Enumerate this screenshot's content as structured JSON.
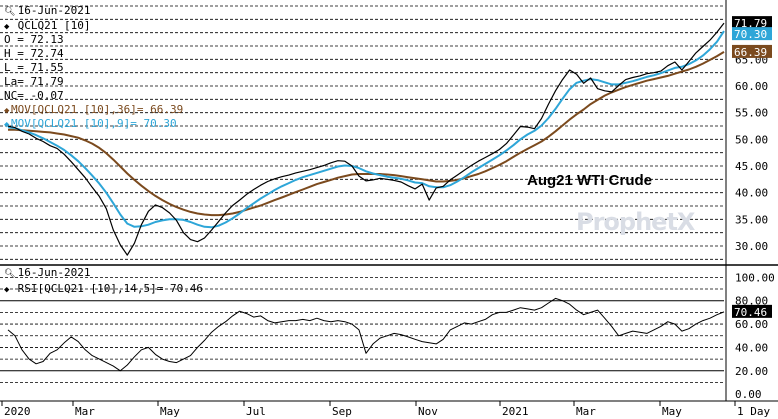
{
  "chart_data": [
    {
      "type": "line",
      "panel": "price",
      "date": "16-Jun-2021",
      "symbol": "QCLQ21 [10]",
      "ohlc": {
        "O": "72.13",
        "H": "72.74",
        "L": "71.55",
        "La": "71.79",
        "NC": "-0.07"
      },
      "ohlc_text": {
        "O": "O = 72.13",
        "H": "H = 72.74",
        "L": "L = 71.55",
        "La": "La= 71.79",
        "NC": "NC= -0.07"
      },
      "series": [
        {
          "name": "QCLQ21 [10]",
          "color": "#000000",
          "values": [
            52.5,
            52.2,
            51.5,
            51.0,
            50.2,
            49.6,
            48.8,
            48.3,
            47.2,
            45.8,
            44.3,
            42.8,
            41.0,
            39.3,
            37.0,
            33.0,
            30.2,
            28.3,
            30.5,
            34.0,
            36.5,
            37.7,
            37.2,
            36.2,
            34.8,
            32.5,
            31.2,
            30.8,
            31.5,
            33.0,
            34.6,
            36.2,
            37.6,
            38.6,
            39.7,
            40.6,
            41.4,
            42.1,
            42.6,
            43.0,
            43.3,
            43.7,
            44.0,
            44.3,
            44.7,
            45.1,
            45.6,
            46.0,
            45.9,
            45.0,
            43.1,
            42.2,
            42.4,
            42.7,
            42.5,
            42.3,
            42.0,
            41.3,
            40.7,
            41.6,
            38.6,
            40.9,
            41.2,
            42.4,
            43.3,
            44.2,
            45.1,
            45.9,
            46.6,
            47.3,
            48.1,
            49.2,
            50.8,
            52.4,
            52.3,
            52.0,
            53.9,
            56.6,
            59.1,
            61.2,
            63.0,
            62.2,
            60.5,
            61.5,
            59.5,
            59.1,
            58.9,
            60.1,
            61.2,
            61.6,
            61.9,
            62.3,
            62.5,
            62.8,
            63.8,
            64.5,
            63.0,
            64.6,
            66.2,
            67.4,
            68.6,
            70.1,
            71.79
          ]
        },
        {
          "name": "MOV[QCLQ21 [10],36]= 66.39",
          "color": "#7b4a1e",
          "values": [
            51.8,
            51.8,
            51.7,
            51.6,
            51.5,
            51.4,
            51.3,
            51.1,
            50.9,
            50.6,
            50.3,
            49.8,
            49.2,
            48.4,
            47.4,
            46.2,
            44.9,
            43.6,
            42.4,
            41.3,
            40.3,
            39.4,
            38.6,
            37.9,
            37.3,
            36.8,
            36.4,
            36.1,
            35.9,
            35.8,
            35.8,
            35.9,
            36.1,
            36.4,
            36.8,
            37.2,
            37.6,
            38.1,
            38.6,
            39.1,
            39.6,
            40.1,
            40.6,
            41.1,
            41.6,
            42.0,
            42.4,
            42.8,
            43.1,
            43.4,
            43.5,
            43.5,
            43.5,
            43.5,
            43.4,
            43.3,
            43.1,
            42.9,
            42.7,
            42.5,
            42.3,
            42.1,
            42.1,
            42.2,
            42.4,
            42.7,
            43.1,
            43.5,
            44.0,
            44.6,
            45.2,
            45.9,
            46.7,
            47.5,
            48.2,
            48.9,
            49.6,
            50.5,
            51.5,
            52.6,
            53.7,
            54.7,
            55.6,
            56.6,
            57.4,
            58.2,
            58.8,
            59.3,
            59.8,
            60.2,
            60.6,
            61.0,
            61.3,
            61.6,
            61.9,
            62.3,
            62.7,
            63.1,
            63.6,
            64.2,
            64.9,
            65.6,
            66.39
          ]
        },
        {
          "name": "MOV[QCLQ21 [10],9]= 70.30",
          "color": "#2ea6d8",
          "values": [
            52.3,
            52.1,
            51.7,
            51.3,
            50.8,
            50.2,
            49.5,
            48.8,
            48.0,
            47.0,
            45.9,
            44.6,
            43.2,
            41.7,
            40.0,
            38.0,
            35.9,
            34.2,
            33.6,
            33.7,
            34.0,
            34.5,
            34.8,
            35.0,
            35.0,
            34.9,
            34.5,
            34.0,
            33.6,
            33.5,
            33.8,
            34.4,
            35.2,
            36.1,
            37.1,
            38.0,
            38.9,
            39.7,
            40.5,
            41.2,
            41.8,
            42.4,
            42.9,
            43.3,
            43.7,
            44.1,
            44.5,
            44.9,
            45.1,
            45.0,
            44.6,
            44.0,
            43.6,
            43.3,
            43.0,
            42.8,
            42.6,
            42.3,
            41.9,
            41.8,
            41.2,
            41.0,
            41.0,
            41.4,
            42.1,
            42.9,
            43.8,
            44.6,
            45.4,
            46.2,
            47.0,
            47.9,
            48.9,
            50.0,
            50.9,
            51.6,
            52.6,
            54.0,
            55.7,
            57.6,
            59.4,
            60.6,
            61.0,
            61.3,
            61.1,
            60.7,
            60.3,
            60.3,
            60.6,
            60.9,
            61.3,
            61.7,
            62.0,
            62.4,
            62.9,
            63.4,
            63.6,
            64.1,
            64.8,
            65.7,
            66.9,
            68.3,
            70.3
          ]
        }
      ],
      "xlabels": [
        "2020",
        "Mar",
        "May",
        "Jul",
        "Sep",
        "Nov",
        "2021",
        "Mar",
        "May",
        "1 Day"
      ],
      "ylim": [
        27.0,
        75.0
      ],
      "yticks": [
        "30.00",
        "35.00",
        "40.00",
        "45.00",
        "50.00",
        "55.00",
        "60.00",
        "65.00"
      ],
      "last_value_labels": [
        {
          "value": "71.79",
          "bg": "#000000",
          "fg": "#ffffff"
        },
        {
          "value": "70.30",
          "bg": "#2ea6d8",
          "fg": "#ffffff"
        },
        {
          "value": "66.39",
          "bg": "#7b4a1e",
          "fg": "#ffffff"
        }
      ],
      "annotation": "Aug21 WTI Crude",
      "watermark": "ProphetX",
      "grid": "horizontal-dashed",
      "legend": "top-left"
    },
    {
      "type": "line",
      "panel": "rsi",
      "date": "16-Jun-2021",
      "series": [
        {
          "name": "RSI[QCLQ21 [10],14,5]= 70.46",
          "color": "#000000",
          "values": [
            55.0,
            50.0,
            38.0,
            30.0,
            26.0,
            28.0,
            35.0,
            38.0,
            44.0,
            49.0,
            45.0,
            38.0,
            33.0,
            30.0,
            27.0,
            24.0,
            20.0,
            25.0,
            32.0,
            38.0,
            40.0,
            34.0,
            30.0,
            28.0,
            27.0,
            30.0,
            33.0,
            40.0,
            46.0,
            53.0,
            58.0,
            62.0,
            67.0,
            71.0,
            69.0,
            66.0,
            67.0,
            63.0,
            61.0,
            62.0,
            63.0,
            63.0,
            64.0,
            63.0,
            65.0,
            63.0,
            62.0,
            63.0,
            62.0,
            60.0,
            55.0,
            35.0,
            43.0,
            48.0,
            50.0,
            52.0,
            51.0,
            49.0,
            47.0,
            45.0,
            44.0,
            43.0,
            47.0,
            55.0,
            58.0,
            61.0,
            60.0,
            62.0,
            64.0,
            68.0,
            70.0,
            70.0,
            72.0,
            74.0,
            73.0,
            72.0,
            74.0,
            78.0,
            82.0,
            80.0,
            77.0,
            72.0,
            68.0,
            70.0,
            72.0,
            65.0,
            58.0,
            50.0,
            52.0,
            54.0,
            53.0,
            52.0,
            55.0,
            58.0,
            62.0,
            60.0,
            54.0,
            56.0,
            60.0,
            63.0,
            65.0,
            68.0,
            70.46
          ]
        }
      ],
      "ylim": [
        -5.0,
        108.0
      ],
      "yticks": [
        "0.00",
        "20.00",
        "40.00",
        "60.00",
        "80.00",
        "100.00"
      ],
      "reference_lines": [
        20,
        80
      ],
      "last_value_label": {
        "value": "70.46",
        "bg": "#000000",
        "fg": "#ffffff"
      }
    }
  ]
}
